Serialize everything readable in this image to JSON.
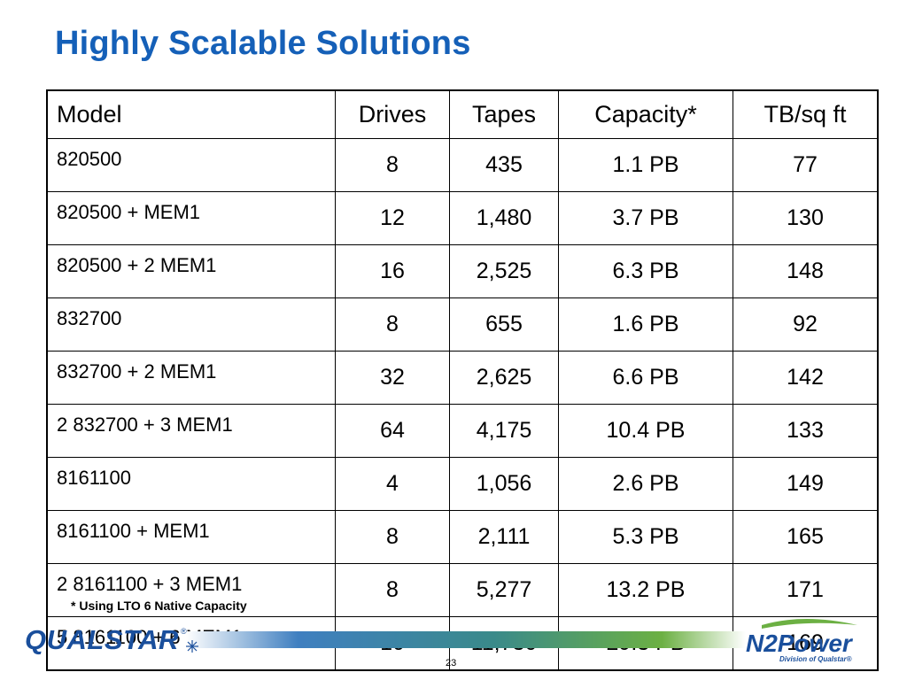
{
  "slide": {
    "title": "Highly Scalable Solutions",
    "footnote": "* Using LTO 6 Native Capacity",
    "page_number": "23"
  },
  "table": {
    "headers": [
      "Model",
      "Drives",
      "Tapes",
      "Capacity*",
      "TB/sq ft"
    ],
    "rows": [
      [
        "820500",
        "8",
        "435",
        "1.1 PB",
        "77"
      ],
      [
        "820500 + MEM1",
        "12",
        "1,480",
        "3.7 PB",
        "130"
      ],
      [
        "820500 + 2 MEM1",
        "16",
        "2,525",
        "6.3 PB",
        "148"
      ],
      [
        "832700",
        "8",
        "655",
        "1.6 PB",
        "92"
      ],
      [
        "832700 + 2 MEM1",
        "32",
        "2,625",
        "6.6 PB",
        "142"
      ],
      [
        "2 832700 + 3 MEM1",
        "64",
        "4,175",
        "10.4 PB",
        "133"
      ],
      [
        "8161100",
        "4",
        "1,056",
        "2.6 PB",
        "149"
      ],
      [
        "8161100 + MEM1",
        "8",
        "2,111",
        "5.3 PB",
        "165"
      ],
      [
        "2 8161100 + 3 MEM1",
        "8",
        "5,277",
        "13.2 PB",
        "171"
      ],
      [
        "5 8161100 + 6 MEM1",
        "10",
        "11,730",
        "29.3 PB",
        "169"
      ]
    ]
  },
  "logos": {
    "left": "QUALSTAR",
    "right": "N2Power",
    "right_subtitle": "Division of Qualstar®"
  },
  "colors": {
    "title": "#1560b8",
    "logo_blue": "#1a4f9c",
    "logo_green": "#6cb043"
  }
}
